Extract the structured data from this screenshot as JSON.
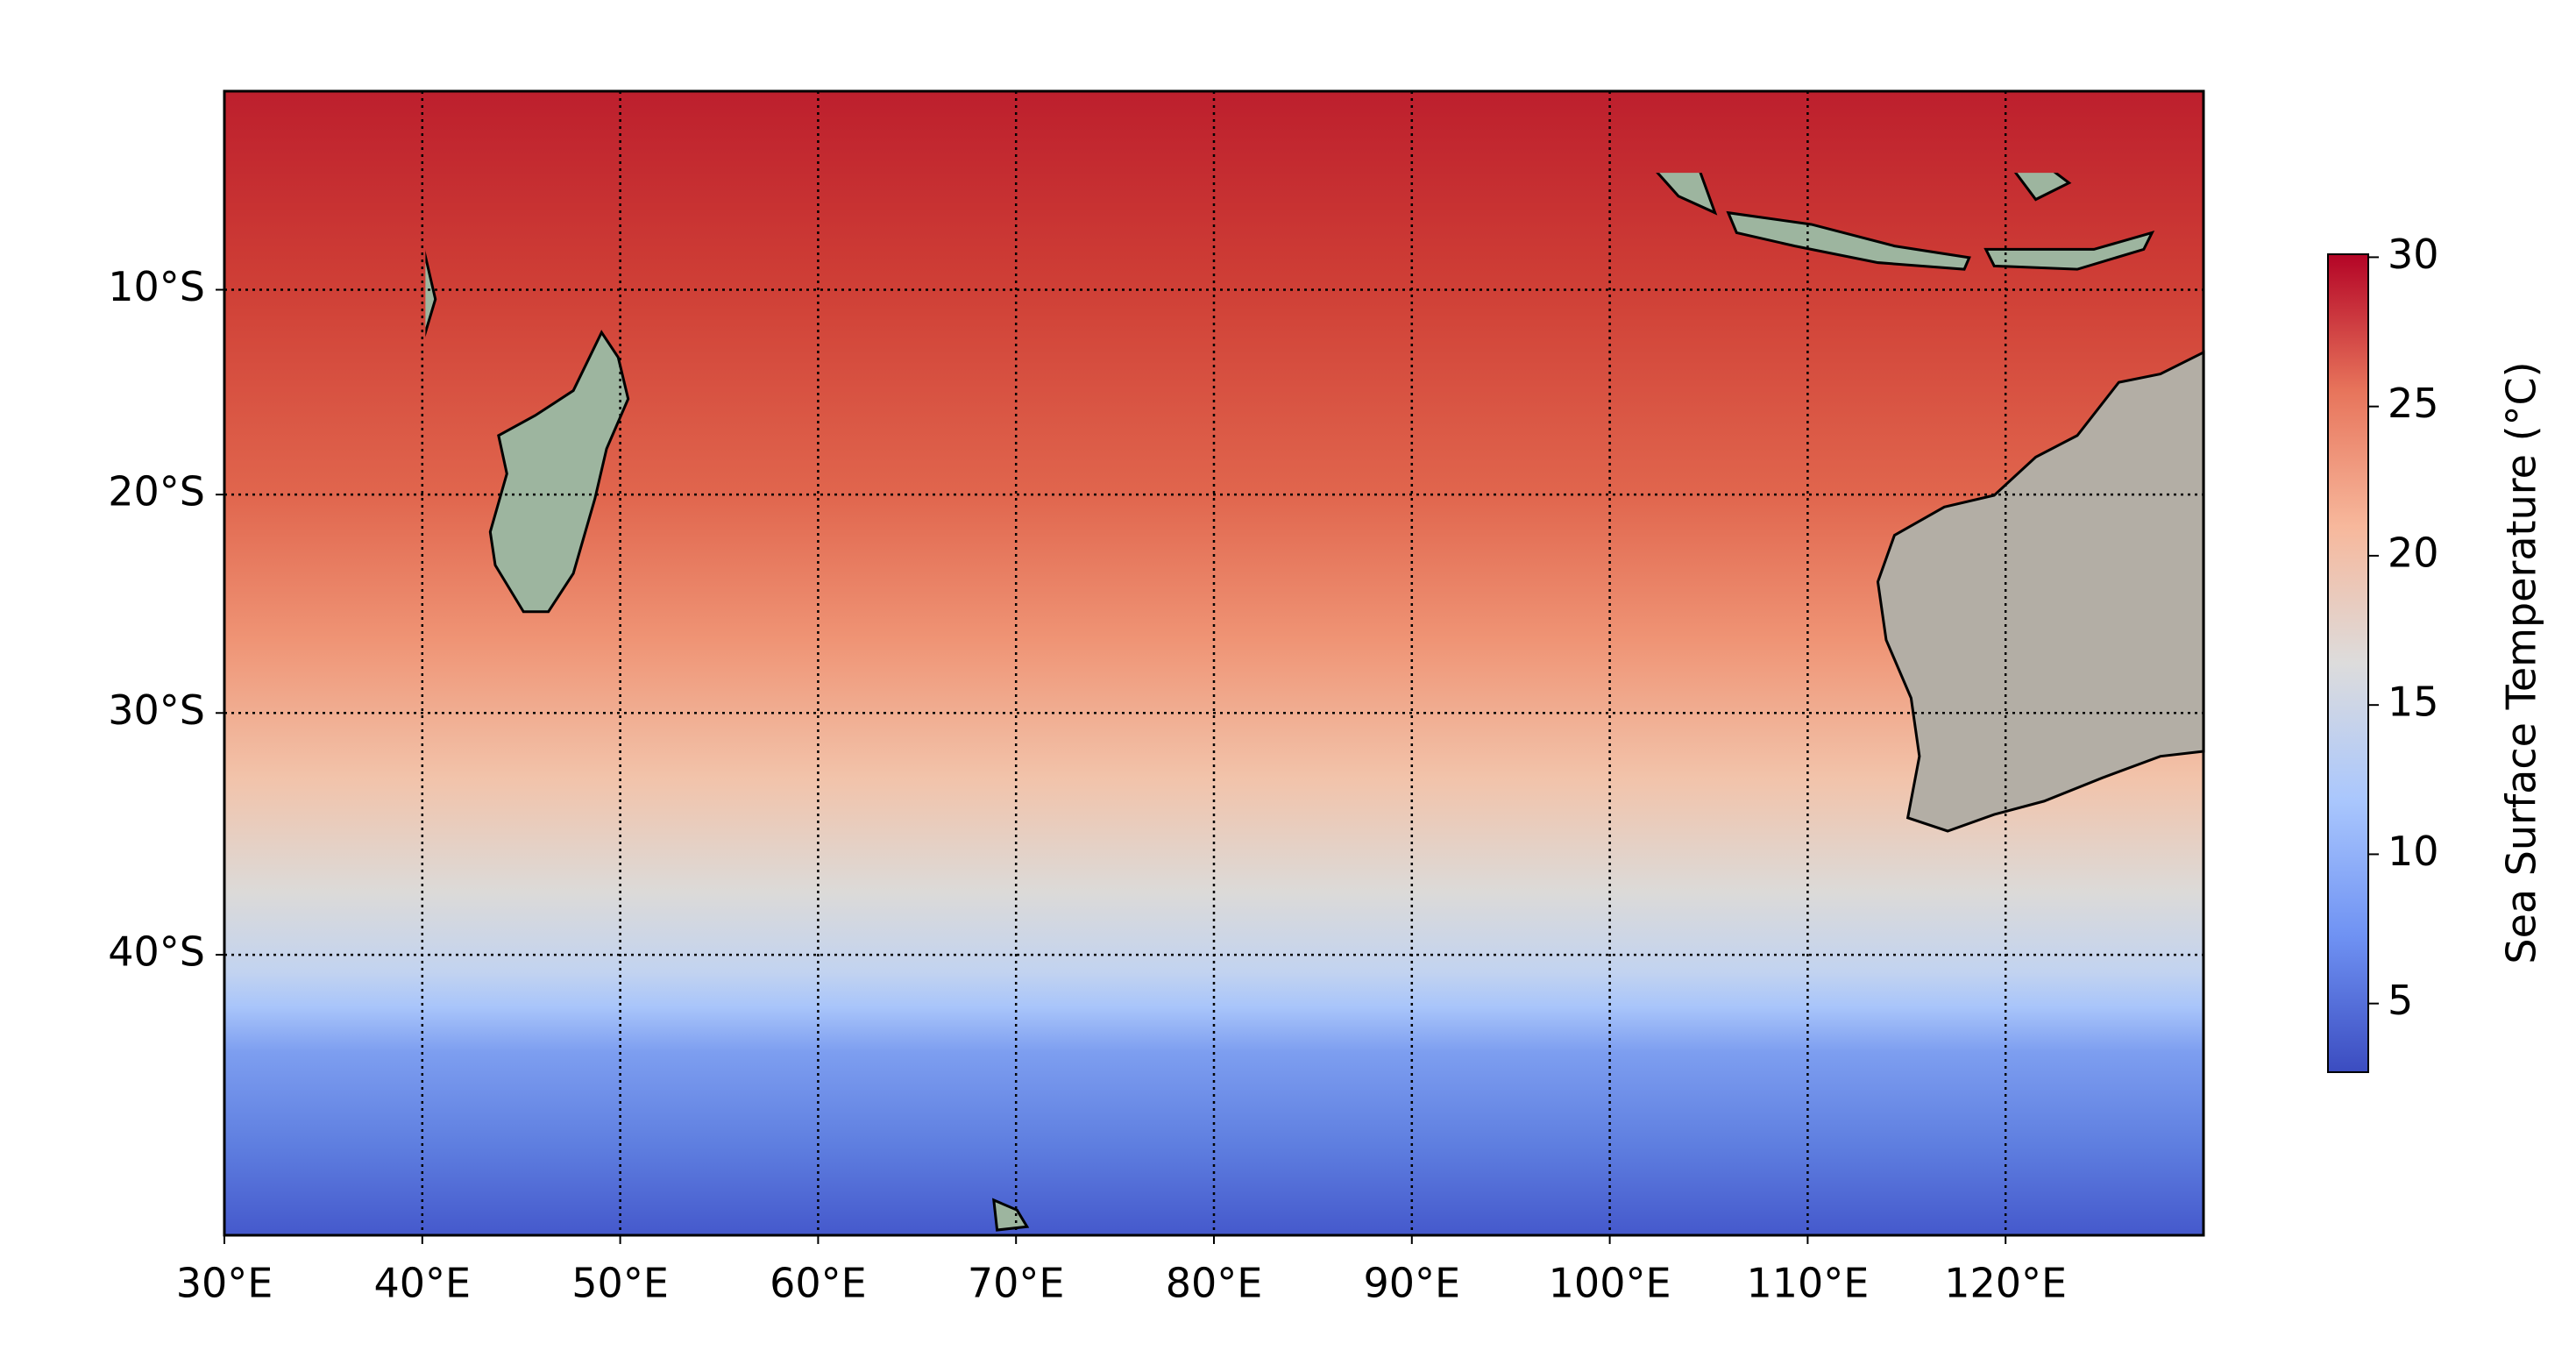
{
  "chart_data": {
    "type": "map",
    "projection": "mercator",
    "xlim": [
      30,
      130
    ],
    "ylim": [
      -50,
      0
    ],
    "xticks": [
      {
        "value": 30,
        "label": "30°E"
      },
      {
        "value": 40,
        "label": "40°E"
      },
      {
        "value": 50,
        "label": "50°E"
      },
      {
        "value": 60,
        "label": "60°E"
      },
      {
        "value": 70,
        "label": "70°E"
      },
      {
        "value": 80,
        "label": "80°E"
      },
      {
        "value": 90,
        "label": "90°E"
      },
      {
        "value": 100,
        "label": "100°E"
      },
      {
        "value": 110,
        "label": "110°E"
      },
      {
        "value": 120,
        "label": "120°E"
      }
    ],
    "yticks": [
      {
        "value": -10,
        "label": "10°S"
      },
      {
        "value": -20,
        "label": "20°S"
      },
      {
        "value": -30,
        "label": "30°S"
      },
      {
        "value": -40,
        "label": "40°S"
      }
    ],
    "grid": true,
    "colorbar": {
      "label": "Sea Surface Temperature (°C)",
      "lim": [
        2.7,
        30.1
      ],
      "ticks": [
        5,
        10,
        15,
        20,
        25,
        30
      ],
      "colors": [
        "#3b4cc0",
        "#6f92f3",
        "#aac7fd",
        "#dddcdc",
        "#f7b89c",
        "#e7745b",
        "#b40426"
      ]
    }
  }
}
